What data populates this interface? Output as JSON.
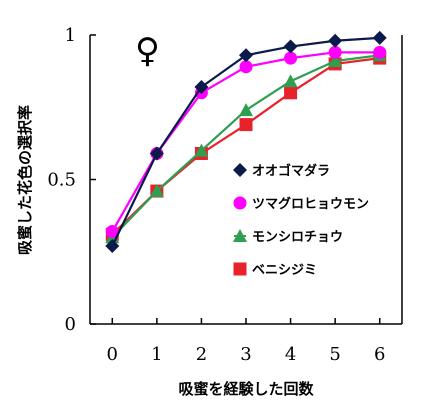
{
  "chart_data": {
    "type": "line",
    "x": [
      0,
      1,
      2,
      3,
      4,
      5,
      6
    ],
    "series": [
      {
        "name": "オオゴマダラ",
        "color": "#0b1a4a",
        "marker": "diamond",
        "values": [
          0.27,
          0.59,
          0.82,
          0.93,
          0.96,
          0.98,
          0.99
        ]
      },
      {
        "name": "ツマグロヒョウモン",
        "color": "#ff00ff",
        "marker": "circle",
        "values": [
          0.32,
          0.59,
          0.8,
          0.89,
          0.92,
          0.94,
          0.94
        ]
      },
      {
        "name": "モンシロチョウ",
        "color": "#2e9e4f",
        "marker": "triangle",
        "values": [
          0.3,
          0.46,
          0.6,
          0.74,
          0.84,
          0.91,
          0.93
        ]
      },
      {
        "name": "ベニシジミ",
        "color": "#e8222a",
        "marker": "square",
        "values": [
          0.31,
          0.46,
          0.59,
          0.69,
          0.8,
          0.9,
          0.92
        ]
      }
    ],
    "xlabel": "吸蜜を経験した回数",
    "ylabel": "吸蜜した花色の選択率",
    "xticks": [
      "0",
      "1",
      "2",
      "3",
      "4",
      "5",
      "6"
    ],
    "yticks": [
      "0",
      "0.5",
      "1"
    ],
    "ytick_values": [
      0,
      0.5,
      1
    ],
    "xlim": [
      -0.5,
      6.5
    ],
    "ylim": [
      0,
      1
    ],
    "annotation": "♀",
    "grid": false,
    "legend_position": "right"
  }
}
